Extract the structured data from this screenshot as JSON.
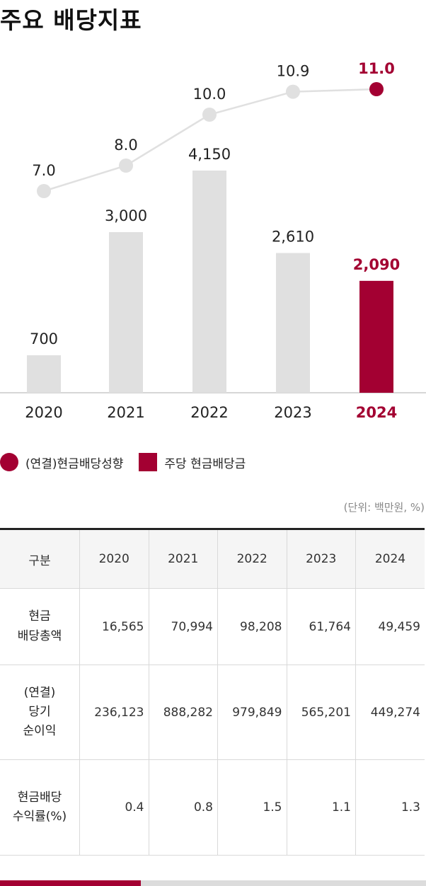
{
  "title": "주요 배당지표",
  "colors": {
    "accent": "#a30032",
    "bar": "#e0e0e0",
    "line_point": "#e0e0e0",
    "line": "#e0e0e0"
  },
  "chart_data": {
    "type": "bar",
    "categories": [
      "2020",
      "2021",
      "2022",
      "2023",
      "2024"
    ],
    "series": [
      {
        "name": "주당 현금배당금",
        "type": "bar",
        "values": [
          700,
          3000,
          4150,
          2610,
          2090
        ],
        "labels": [
          "700",
          "3,000",
          "4,150",
          "2,610",
          "2,090"
        ]
      },
      {
        "name": "(연결)현금배당성향",
        "type": "line",
        "values": [
          7.0,
          8.0,
          10.0,
          10.9,
          11.0
        ],
        "labels": [
          "7.0",
          "8.0",
          "10.0",
          "10.9",
          "11.0"
        ]
      }
    ],
    "highlight_category": "2024"
  },
  "legend": {
    "line_label": "(연결)현금배당성향",
    "bar_label": "주당 현금배당금"
  },
  "unit": "(단위: 백만원, %)",
  "table": {
    "corner": "구분",
    "headers": [
      "2020",
      "2021",
      "2022",
      "2023",
      "2024"
    ],
    "rows": [
      {
        "label_lines": [
          "현금",
          "배당총액"
        ],
        "values": [
          "16,565",
          "70,994",
          "98,208",
          "61,764",
          "49,459"
        ]
      },
      {
        "label_lines": [
          "(연결)",
          "당기",
          "순이익"
        ],
        "values": [
          "236,123",
          "888,282",
          "979,849",
          "565,201",
          "449,274"
        ]
      },
      {
        "label_lines": [
          "현금배당",
          "수익률(%)"
        ],
        "values": [
          "0.4",
          "0.8",
          "1.5",
          "1.1",
          "1.3"
        ]
      }
    ]
  },
  "progress": 0.33
}
